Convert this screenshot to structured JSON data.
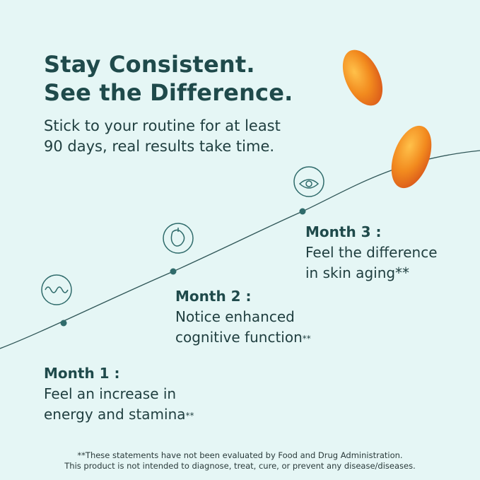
{
  "header": {
    "title": [
      "Stay Consistent.",
      "See the Difference."
    ],
    "subtitle": [
      "Stick to your routine for at least",
      "90 days, real results take time."
    ]
  },
  "milestones": [
    {
      "label": "Month 1 :",
      "lines": [
        "Feel an increase in",
        "energy and stamina"
      ],
      "note": "**"
    },
    {
      "label": "Month 2 :",
      "lines": [
        "Notice enhanced",
        "cognitive function"
      ],
      "note": "**"
    },
    {
      "label": "Month 3 :",
      "lines": [
        "Feel the difference",
        "in skin aging**"
      ]
    }
  ],
  "footer": [
    "**These statements have not been evaluated by Food and Drug Administration.",
    "This product is not intended to diagnose, treat, cure, or prevent any disease/diseases."
  ]
}
